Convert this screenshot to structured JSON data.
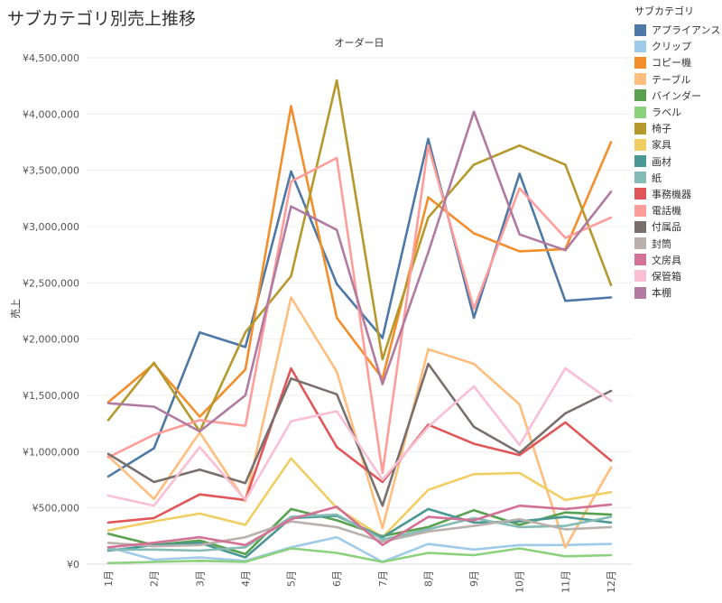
{
  "title": "サブカテゴリ別売上推移",
  "chart_data": {
    "type": "line",
    "title": "サブカテゴリ別売上推移",
    "xlabel": "オーダー日",
    "ylabel": "売上",
    "categories": [
      "1月",
      "2月",
      "3月",
      "4月",
      "5月",
      "6月",
      "7月",
      "8月",
      "9月",
      "10月",
      "11月",
      "12月"
    ],
    "ylim": [
      0,
      4500000
    ],
    "yticks": [
      {
        "value": 0,
        "label": "¥0"
      },
      {
        "value": 500000,
        "label": "¥500,000"
      },
      {
        "value": 1000000,
        "label": "¥1,000,000"
      },
      {
        "value": 1500000,
        "label": "¥1,500,000"
      },
      {
        "value": 2000000,
        "label": "¥2,000,000"
      },
      {
        "value": 2500000,
        "label": "¥2,500,000"
      },
      {
        "value": 3000000,
        "label": "¥3,000,000"
      },
      {
        "value": 3500000,
        "label": "¥3,500,000"
      },
      {
        "value": 4000000,
        "label": "¥4,000,000"
      },
      {
        "value": 4500000,
        "label": "¥4,500,000"
      }
    ],
    "grid": true,
    "legend_position": "right",
    "legend_title": "サブカテゴリ",
    "series": [
      {
        "name": "アプライアンス",
        "color": "#4e79a7",
        "values": [
          780000,
          1030000,
          2060000,
          1930000,
          3490000,
          2490000,
          2010000,
          3780000,
          2190000,
          3470000,
          2340000,
          2370000
        ]
      },
      {
        "name": "クリップ",
        "color": "#a0cbe8",
        "values": [
          150000,
          40000,
          60000,
          30000,
          150000,
          240000,
          20000,
          180000,
          130000,
          170000,
          170000,
          180000
        ]
      },
      {
        "name": "コピー機",
        "color": "#f28e2b",
        "values": [
          1440000,
          1780000,
          1310000,
          1730000,
          4070000,
          2190000,
          1650000,
          3260000,
          2940000,
          2780000,
          2800000,
          3750000
        ]
      },
      {
        "name": "テーブル",
        "color": "#ffbe7d",
        "values": [
          960000,
          580000,
          1170000,
          560000,
          2370000,
          1710000,
          320000,
          1910000,
          1780000,
          1420000,
          150000,
          860000
        ]
      },
      {
        "name": "バインダー",
        "color": "#59a14f",
        "values": [
          270000,
          170000,
          210000,
          90000,
          490000,
          390000,
          250000,
          330000,
          480000,
          350000,
          460000,
          440000
        ]
      },
      {
        "name": "ラベル",
        "color": "#8cd17d",
        "values": [
          10000,
          20000,
          30000,
          20000,
          140000,
          100000,
          20000,
          100000,
          80000,
          140000,
          70000,
          80000
        ]
      },
      {
        "name": "椅子",
        "color": "#b6992d",
        "values": [
          1280000,
          1790000,
          1180000,
          2060000,
          2560000,
          4300000,
          1820000,
          3080000,
          3550000,
          3720000,
          3550000,
          2480000
        ]
      },
      {
        "name": "家具",
        "color": "#f1ce63",
        "values": [
          300000,
          380000,
          450000,
          350000,
          940000,
          500000,
          240000,
          660000,
          800000,
          810000,
          570000,
          640000
        ]
      },
      {
        "name": "画材",
        "color": "#499894",
        "values": [
          120000,
          170000,
          190000,
          60000,
          410000,
          430000,
          240000,
          490000,
          370000,
          380000,
          420000,
          370000
        ]
      },
      {
        "name": "紙",
        "color": "#86bcb6",
        "values": [
          130000,
          130000,
          120000,
          150000,
          420000,
          440000,
          220000,
          310000,
          410000,
          330000,
          340000,
          420000
        ]
      },
      {
        "name": "事務機器",
        "color": "#e15759",
        "values": [
          370000,
          410000,
          620000,
          570000,
          1740000,
          1040000,
          730000,
          1240000,
          1070000,
          970000,
          1260000,
          920000
        ]
      },
      {
        "name": "電話機",
        "color": "#ff9d9a",
        "values": [
          950000,
          1150000,
          1280000,
          1230000,
          3400000,
          3610000,
          810000,
          3720000,
          2270000,
          3340000,
          2900000,
          3080000
        ]
      },
      {
        "name": "付属品",
        "color": "#79706e",
        "values": [
          980000,
          730000,
          840000,
          720000,
          1650000,
          1510000,
          520000,
          1780000,
          1220000,
          990000,
          1340000,
          1540000
        ]
      },
      {
        "name": "封筒",
        "color": "#bab0ac",
        "values": [
          190000,
          160000,
          170000,
          240000,
          380000,
          330000,
          200000,
          290000,
          340000,
          400000,
          310000,
          330000
        ]
      },
      {
        "name": "文房具",
        "color": "#d37295",
        "values": [
          150000,
          190000,
          240000,
          170000,
          400000,
          510000,
          170000,
          420000,
          390000,
          520000,
          490000,
          530000
        ]
      },
      {
        "name": "保管箱",
        "color": "#fabfd2",
        "values": [
          610000,
          520000,
          1040000,
          570000,
          1270000,
          1360000,
          750000,
          1220000,
          1580000,
          1060000,
          1740000,
          1450000
        ]
      },
      {
        "name": "本棚",
        "color": "#b07aa1",
        "values": [
          1430000,
          1400000,
          1180000,
          1500000,
          3180000,
          2970000,
          1600000,
          2770000,
          4020000,
          2930000,
          2790000,
          3310000
        ]
      }
    ]
  }
}
